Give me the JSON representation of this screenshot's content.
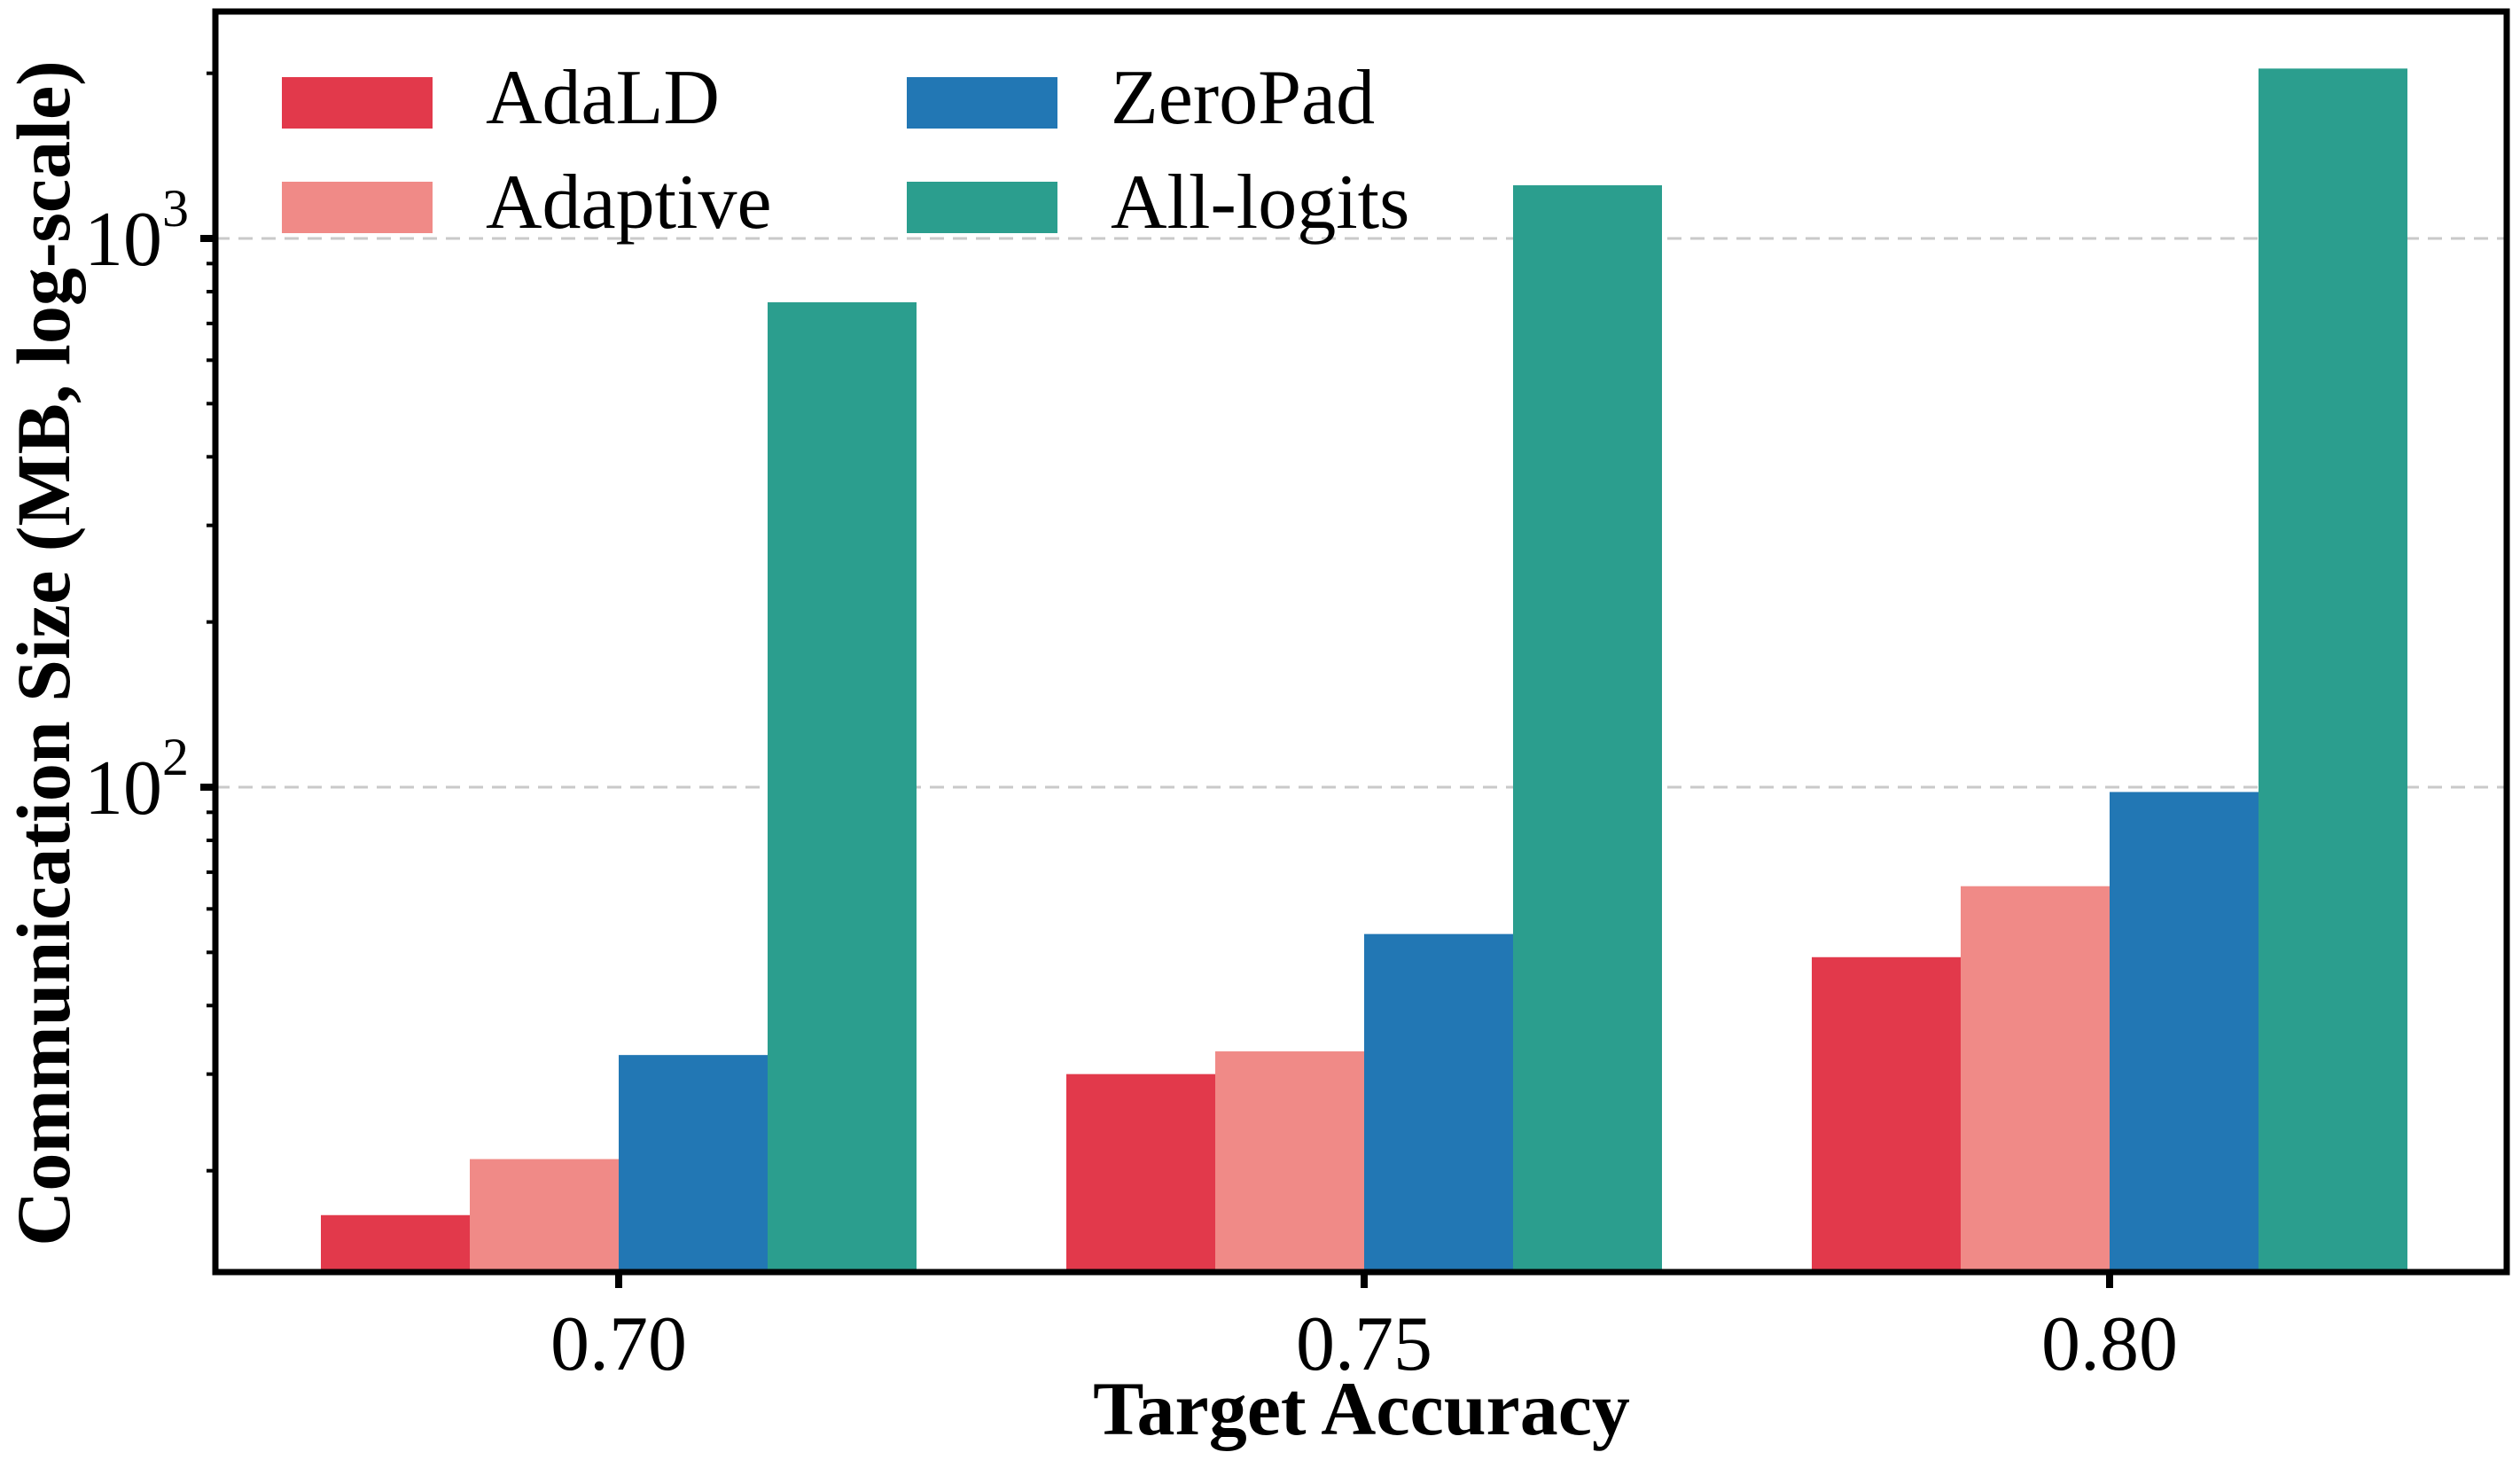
{
  "chart_data": {
    "type": "bar",
    "title": "",
    "xlabel": "Target Accuracy",
    "ylabel": "Communication Size (MB, log-scale)",
    "categories": [
      "0.70",
      "0.75",
      "0.80"
    ],
    "series": [
      {
        "name": "AdaLD",
        "color": "#e2394b",
        "values": [
          16.6,
          30,
          49
        ]
      },
      {
        "name": "Adaptive",
        "color": "#f08a87",
        "values": [
          21,
          33,
          66
        ]
      },
      {
        "name": "ZeroPad",
        "color": "#2277b4",
        "values": [
          32.5,
          54,
          98
        ]
      },
      {
        "name": "All-logits",
        "color": "#2b9e8e",
        "values": [
          765,
          1250,
          2040
        ]
      }
    ],
    "yscale": "log",
    "ylim": [
      13,
      2600
    ],
    "y_major_ticks": [
      {
        "base": "10",
        "exp": "3",
        "value": 1000
      },
      {
        "base": "10",
        "exp": "2",
        "value": 100
      }
    ],
    "grid": "dashed horizontal gridlines at major y ticks",
    "grid_color": "#c9c9c9",
    "legend_position": "upper-left, 2 columns, no frame",
    "axis_color": "#000000",
    "background_color": "#ffffff"
  }
}
